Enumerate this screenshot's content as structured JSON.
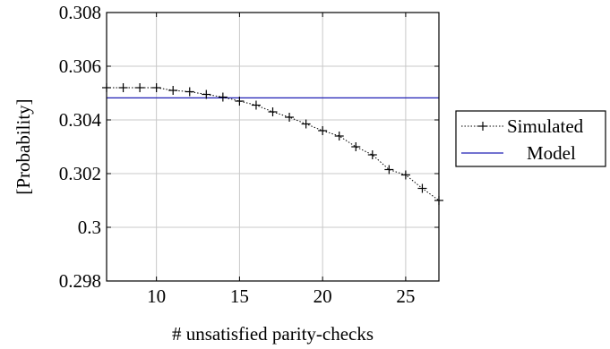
{
  "chart_data": {
    "type": "line",
    "xlabel": "# unsatisfied parity-checks",
    "ylabel": "[Probability]",
    "xlim": [
      7,
      27
    ],
    "ylim": [
      0.298,
      0.308
    ],
    "grid": true,
    "legend_position": "right",
    "x_ticks": [
      {
        "value": 10,
        "label": "10"
      },
      {
        "value": 15,
        "label": "15"
      },
      {
        "value": 20,
        "label": "20"
      },
      {
        "value": 25,
        "label": "25"
      }
    ],
    "y_ticks": [
      {
        "value": 0.298,
        "label": "0.298"
      },
      {
        "value": 0.3,
        "label": "0.3"
      },
      {
        "value": 0.302,
        "label": "0.302"
      },
      {
        "value": 0.304,
        "label": "0.304"
      },
      {
        "value": 0.306,
        "label": "0.306"
      },
      {
        "value": 0.308,
        "label": "0.308"
      }
    ],
    "series": [
      {
        "name": "Simulated",
        "style": "dotted-plus",
        "color": "#000000",
        "x": [
          7,
          8,
          9,
          10,
          11,
          12,
          13,
          14,
          15,
          16,
          17,
          18,
          19,
          20,
          21,
          22,
          23,
          24,
          25,
          26,
          27
        ],
        "y": [
          0.3052,
          0.3052,
          0.3052,
          0.3052,
          0.3051,
          0.30505,
          0.30495,
          0.30485,
          0.3047,
          0.30455,
          0.3043,
          0.3041,
          0.30385,
          0.3036,
          0.3034,
          0.303,
          0.3027,
          0.30215,
          0.30195,
          0.30145,
          0.301
        ]
      },
      {
        "name": "Model",
        "style": "solid",
        "color": "#1f1fb4",
        "x": [
          7,
          27
        ],
        "y": [
          0.30482,
          0.30482
        ]
      }
    ]
  }
}
